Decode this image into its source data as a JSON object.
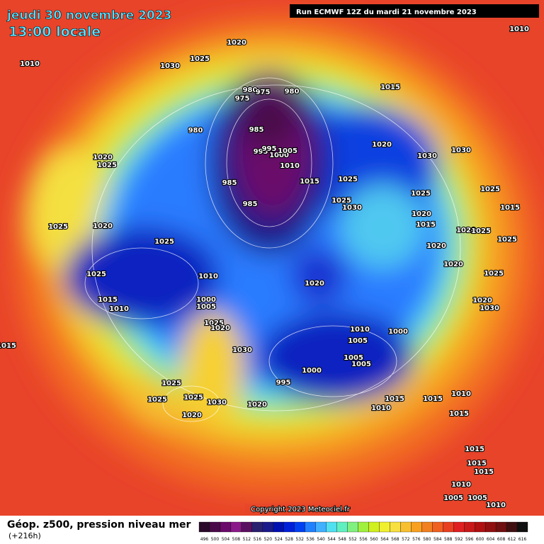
{
  "header": {
    "date": "jeudi 30 novembre 2023",
    "time": "13:00 locale",
    "run": "Run ECMWF 12Z du mardi 21 novembre 2023"
  },
  "copyright": "Copyright 2023 Meteociel.fr",
  "legend": {
    "title": "Géop. z500, pression niveau mer",
    "lead": "(+216h)"
  },
  "colorbar": {
    "values": [
      496,
      500,
      504,
      508,
      512,
      516,
      520,
      524,
      528,
      532,
      536,
      540,
      544,
      548,
      552,
      556,
      560,
      564,
      568,
      572,
      576,
      580,
      584,
      588,
      592,
      596,
      600,
      604,
      608,
      612,
      616
    ],
    "colors": [
      "#2a0a2a",
      "#4a0a4a",
      "#6a0a6a",
      "#8a1a8a",
      "#5a1060",
      "#2a2070",
      "#1a1a8a",
      "#0010b0",
      "#0020d8",
      "#0040f0",
      "#2080ff",
      "#40b0ff",
      "#50e0f0",
      "#60f0c0",
      "#80f080",
      "#a0f040",
      "#d0f020",
      "#f0f030",
      "#f8e040",
      "#f8c030",
      "#f8a020",
      "#f08020",
      "#f06020",
      "#e84020",
      "#e02020",
      "#c81818",
      "#b01010",
      "#901010",
      "#701010",
      "#401010",
      "#101010"
    ]
  },
  "pressure_labels": [
    1010,
    1030,
    1025,
    1020,
    1010,
    980,
    975,
    980,
    975,
    1015,
    980,
    985,
    995,
    995,
    1000,
    1005,
    1010,
    1020,
    1030,
    1030,
    1020,
    1025,
    985,
    1015,
    1025,
    985,
    1025,
    1030,
    1025,
    1025,
    1015,
    1020,
    1015,
    1025,
    1020,
    1025,
    1020,
    1025,
    1025,
    1020,
    1020,
    1025,
    1010,
    1025,
    1020,
    1015,
    1010,
    1000,
    1005,
    1020,
    1030,
    1025,
    1020,
    1010,
    1000,
    1005,
    1030,
    1015,
    1005,
    1005,
    1000,
    995,
    1025,
    1025,
    1030,
    1025,
    1020,
    1020,
    1010,
    1015,
    1015,
    1010,
    1015,
    1015,
    1015,
    1015,
    1010,
    1005,
    1005,
    1010
  ]
}
